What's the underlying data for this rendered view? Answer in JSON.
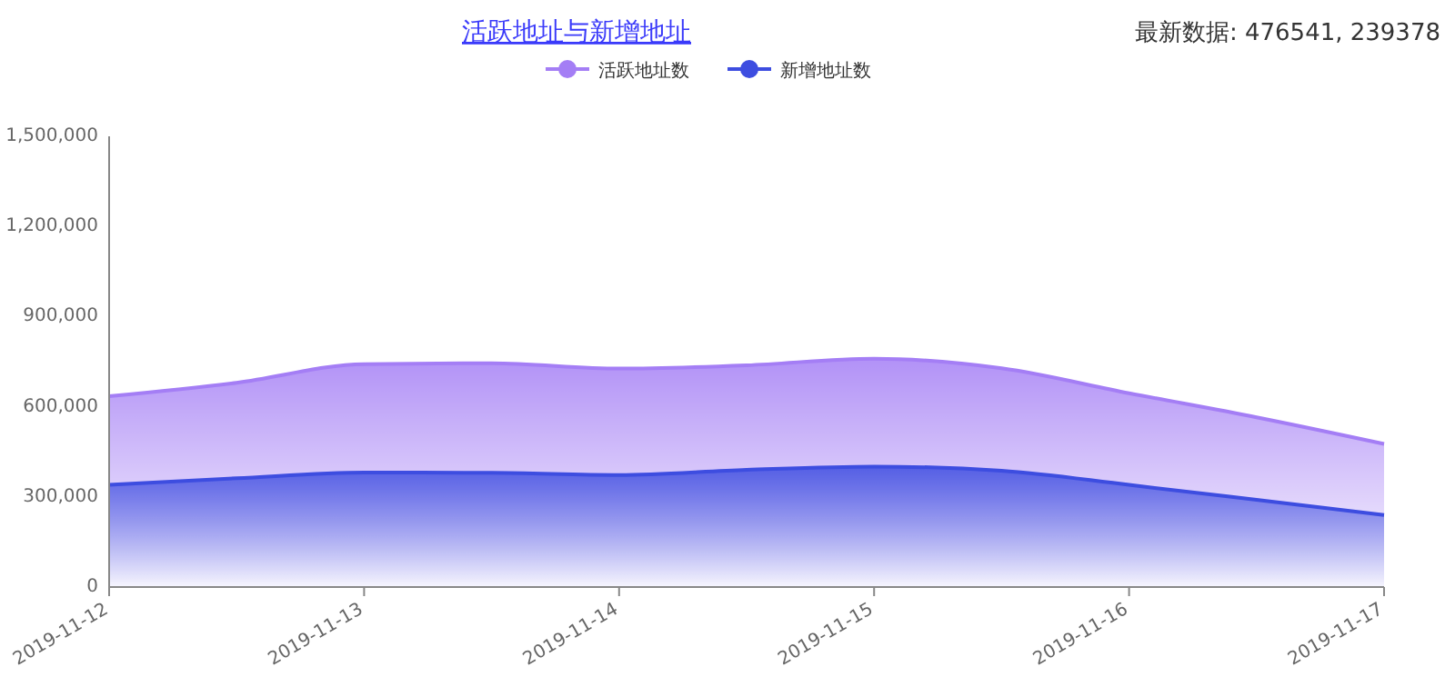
{
  "chart_data": {
    "type": "area",
    "title": "活跃地址与新增地址",
    "annotations": [
      "最新数据: 476541, 239378"
    ],
    "x": [
      "2019-11-12T00:00",
      "2019-11-12T12:00",
      "2019-11-13T00:00",
      "2019-11-13T12:00",
      "2019-11-14T00:00",
      "2019-11-14T12:00",
      "2019-11-15T00:00",
      "2019-11-15T12:00",
      "2019-11-16T00:00",
      "2019-11-16T12:00",
      "2019-11-17T00:00"
    ],
    "series": [
      {
        "name": "活跃地址数",
        "color": "#a47ef5",
        "values": [
          635000,
          680000,
          742000,
          745000,
          727000,
          738000,
          760000,
          728000,
          645000,
          565000,
          476541
        ]
      },
      {
        "name": "新增地址数",
        "color": "#3d4de0",
        "values": [
          340000,
          362000,
          381000,
          380000,
          373000,
          390000,
          401000,
          387000,
          340000,
          290000,
          239378
        ]
      }
    ],
    "xlim": [
      "2019-11-12",
      "2019-11-17"
    ],
    "xticks": [
      "2019-11-12",
      "2019-11-13",
      "2019-11-14",
      "2019-11-15",
      "2019-11-16",
      "2019-11-17"
    ],
    "ylim": [
      0,
      1500000
    ],
    "yticks": [
      {
        "value": 0,
        "label": "0"
      },
      {
        "value": 300000,
        "label": "300,000"
      },
      {
        "value": 600000,
        "label": "600,000"
      },
      {
        "value": 900000,
        "label": "900,000"
      },
      {
        "value": 1200000,
        "label": "1,200,000"
      },
      {
        "value": 1500000,
        "label": "1,500,000"
      }
    ],
    "grid": false,
    "legend": "top"
  }
}
